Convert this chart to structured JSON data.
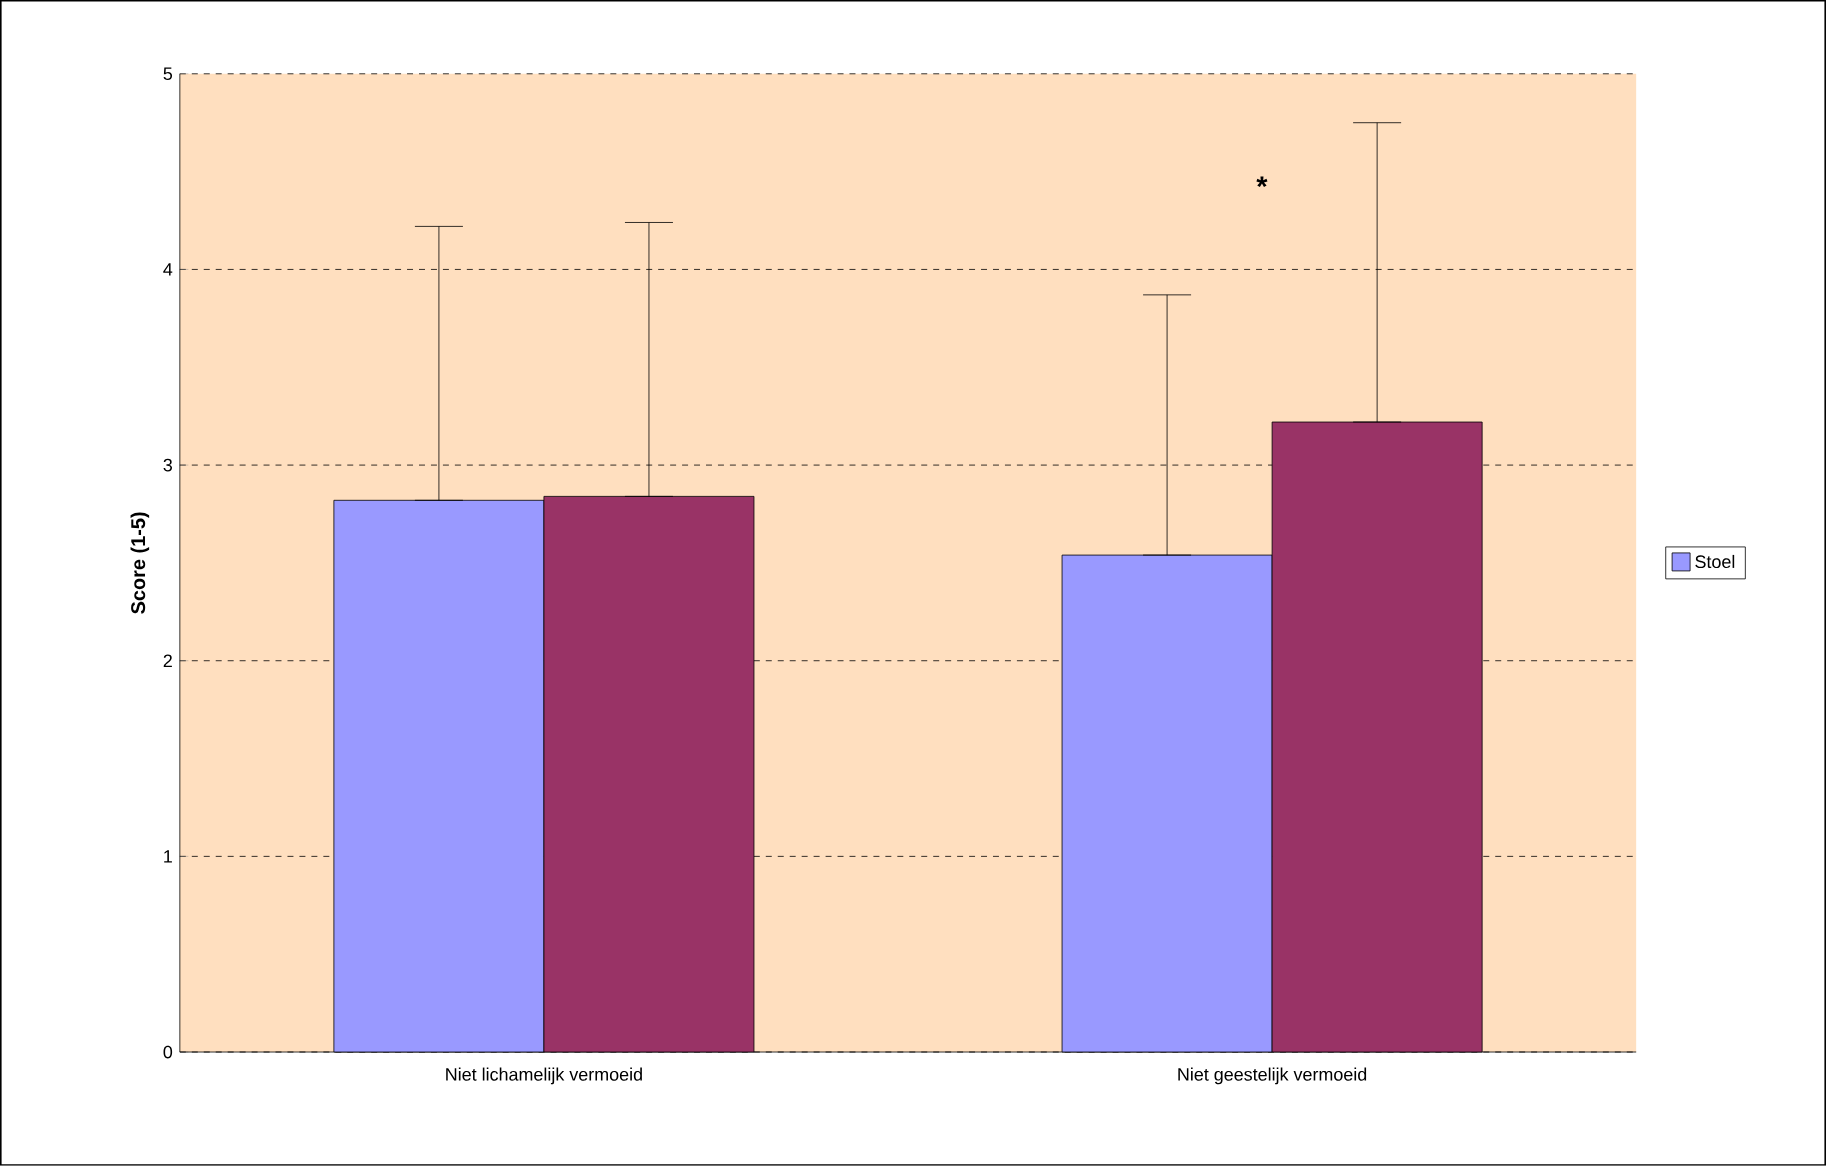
{
  "chart_data": {
    "type": "bar",
    "ylabel": "Score (1-5)",
    "categories": [
      "Niet lichamelijk vermoeid",
      "Niet geestelijk vermoeid"
    ],
    "series": [
      {
        "name": "Stoel",
        "color": "#9999ff",
        "values": [
          2.82,
          2.54
        ],
        "errors": [
          [
            2.82,
            4.22
          ],
          [
            2.54,
            3.87
          ]
        ]
      },
      {
        "color": "#993366",
        "values": [
          2.84,
          3.22
        ],
        "errors": [
          [
            2.84,
            4.24
          ],
          [
            3.22,
            4.75
          ]
        ]
      }
    ],
    "ylim": [
      0,
      5
    ],
    "yticks": [
      0,
      1,
      2,
      3,
      4,
      5
    ],
    "grid": "y",
    "legend": "right",
    "annotations": [
      "*"
    ]
  }
}
